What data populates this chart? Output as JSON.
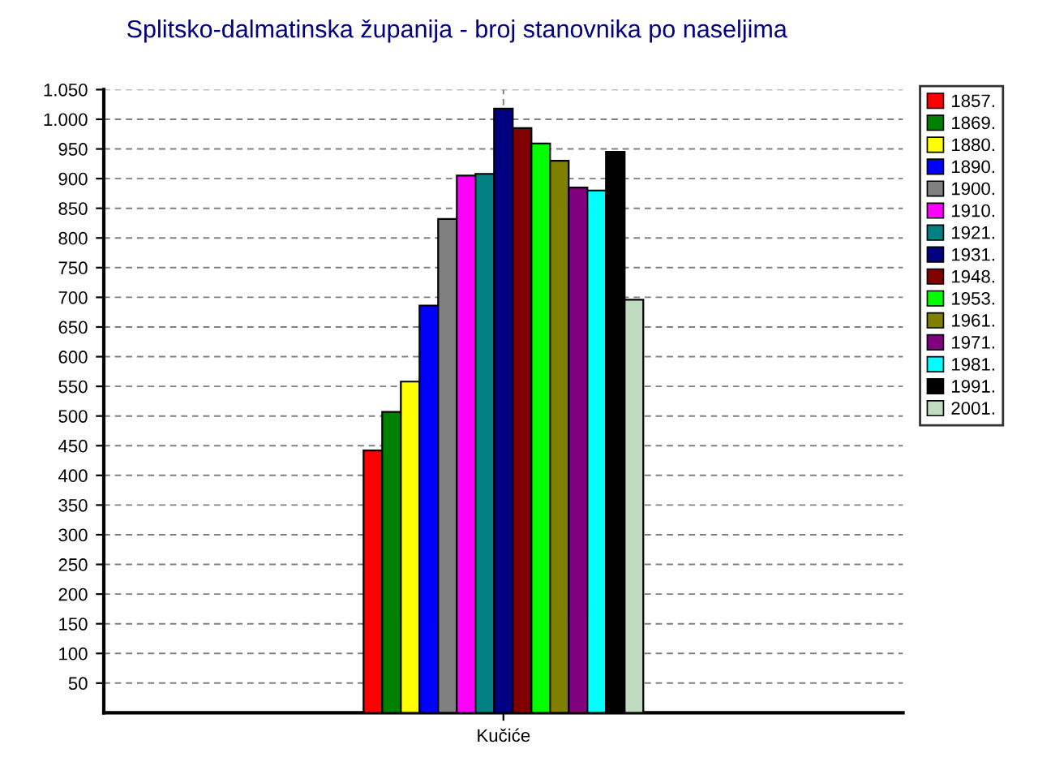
{
  "chart_data": {
    "type": "bar",
    "title": "Splitsko-dalmatinska županija - broj stanovnika po naseljima",
    "categories": [
      "Kučiće"
    ],
    "series": [
      {
        "name": "1857.",
        "color": "#ff0000",
        "values": [
          442
        ]
      },
      {
        "name": "1869.",
        "color": "#008000",
        "values": [
          507
        ]
      },
      {
        "name": "1880.",
        "color": "#ffff00",
        "values": [
          558
        ]
      },
      {
        "name": "1890.",
        "color": "#0000ff",
        "values": [
          686
        ]
      },
      {
        "name": "1900.",
        "color": "#808080",
        "values": [
          832
        ]
      },
      {
        "name": "1910.",
        "color": "#ff00ff",
        "values": [
          905
        ]
      },
      {
        "name": "1921.",
        "color": "#008080",
        "values": [
          908
        ]
      },
      {
        "name": "1931.",
        "color": "#000080",
        "values": [
          1018
        ]
      },
      {
        "name": "1948.",
        "color": "#800000",
        "values": [
          985
        ]
      },
      {
        "name": "1953.",
        "color": "#00ff00",
        "values": [
          959
        ]
      },
      {
        "name": "1961.",
        "color": "#808000",
        "values": [
          930
        ]
      },
      {
        "name": "1971.",
        "color": "#800080",
        "values": [
          885
        ]
      },
      {
        "name": "1981.",
        "color": "#00ffff",
        "values": [
          880
        ]
      },
      {
        "name": "1991.",
        "color": "#000000",
        "values": [
          945
        ]
      },
      {
        "name": "2001.",
        "color": "#c0dcc0",
        "values": [
          696
        ]
      }
    ],
    "ylim": [
      0,
      1050
    ],
    "yticks": [
      {
        "value": 50,
        "label": "50"
      },
      {
        "value": 100,
        "label": "100"
      },
      {
        "value": 150,
        "label": "150"
      },
      {
        "value": 200,
        "label": "200"
      },
      {
        "value": 250,
        "label": "250"
      },
      {
        "value": 300,
        "label": "300"
      },
      {
        "value": 350,
        "label": "350"
      },
      {
        "value": 400,
        "label": "400"
      },
      {
        "value": 450,
        "label": "450"
      },
      {
        "value": 500,
        "label": "500"
      },
      {
        "value": 550,
        "label": "550"
      },
      {
        "value": 600,
        "label": "600"
      },
      {
        "value": 650,
        "label": "650"
      },
      {
        "value": 700,
        "label": "700"
      },
      {
        "value": 750,
        "label": "750"
      },
      {
        "value": 800,
        "label": "800"
      },
      {
        "value": 850,
        "label": "850"
      },
      {
        "value": 900,
        "label": "900"
      },
      {
        "value": 950,
        "label": "950"
      },
      {
        "value": 1000,
        "label": "1.000"
      },
      {
        "value": 1050,
        "label": "1.050"
      }
    ],
    "grid": true,
    "legend": "right"
  }
}
